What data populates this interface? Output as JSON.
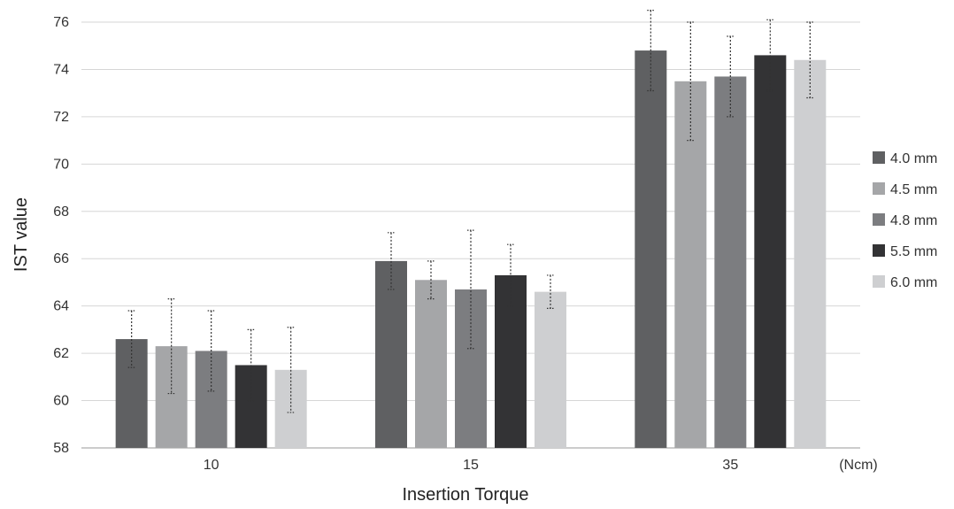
{
  "chart_data": {
    "type": "bar",
    "title": "",
    "xlabel": "Insertion Torque",
    "ylabel": "IST value",
    "x_unit": "(Ncm)",
    "categories": [
      "10",
      "15",
      "35"
    ],
    "ylim": [
      58,
      76
    ],
    "yticks": [
      58,
      60,
      62,
      64,
      66,
      68,
      70,
      72,
      74,
      76
    ],
    "grid": true,
    "legend_position": "right",
    "error_bars": true,
    "series": [
      {
        "name": "4.0 mm",
        "color": "#5f6062",
        "values": [
          62.6,
          65.9,
          74.8
        ],
        "errors": [
          1.2,
          1.2,
          1.7
        ]
      },
      {
        "name": "4.5 mm",
        "color": "#a5a6a8",
        "values": [
          62.3,
          65.1,
          73.5
        ],
        "errors": [
          2.0,
          0.8,
          2.5
        ]
      },
      {
        "name": "4.8 mm",
        "color": "#7c7d80",
        "values": [
          62.1,
          64.7,
          73.7
        ],
        "errors": [
          1.7,
          2.5,
          1.7
        ]
      },
      {
        "name": "5.5 mm",
        "color": "#333335",
        "values": [
          61.5,
          65.3,
          74.6
        ],
        "errors": [
          1.5,
          1.3,
          1.5
        ]
      },
      {
        "name": "6.0 mm",
        "color": "#cecfd1",
        "values": [
          61.3,
          64.6,
          74.4
        ],
        "errors": [
          1.8,
          0.7,
          1.6
        ]
      }
    ]
  }
}
